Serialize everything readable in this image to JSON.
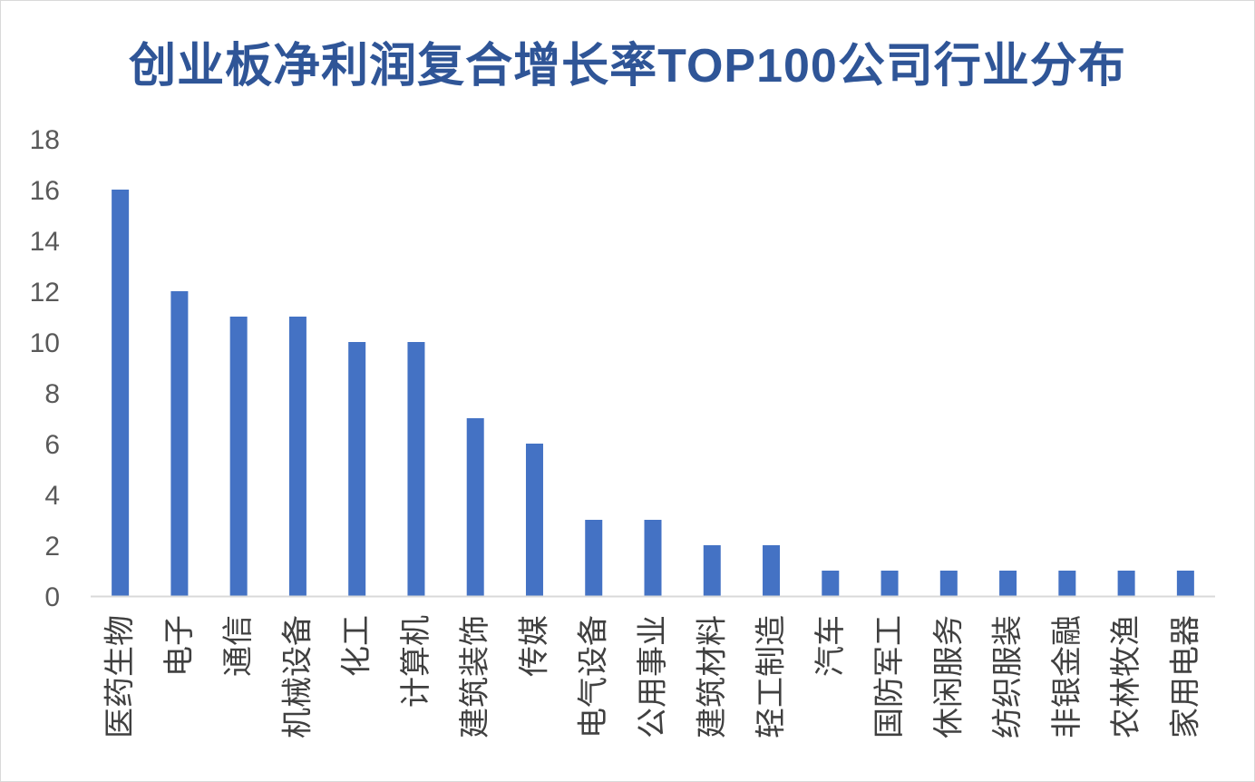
{
  "title": "创业板净利润复合增长率TOP100公司行业分布",
  "chart_data": {
    "type": "bar",
    "title": "创业板净利润复合增长率TOP100公司行业分布",
    "xlabel": "",
    "ylabel": "",
    "categories": [
      "医药生物",
      "电子",
      "通信",
      "机械设备",
      "化工",
      "计算机",
      "建筑装饰",
      "传媒",
      "电气设备",
      "公用事业",
      "建筑材料",
      "轻工制造",
      "汽车",
      "国防军工",
      "休闲服务",
      "纺织服装",
      "非银金融",
      "农林牧渔",
      "家用电器"
    ],
    "values": [
      16,
      12,
      11,
      11,
      10,
      10,
      7,
      6,
      3,
      3,
      2,
      2,
      1,
      1,
      1,
      1,
      1,
      1,
      1
    ],
    "ylim": [
      0,
      18
    ],
    "yticks": [
      0,
      2,
      4,
      6,
      8,
      10,
      12,
      14,
      16,
      18
    ],
    "grid": false,
    "legend": "none",
    "bar_color": "#4472c4"
  }
}
